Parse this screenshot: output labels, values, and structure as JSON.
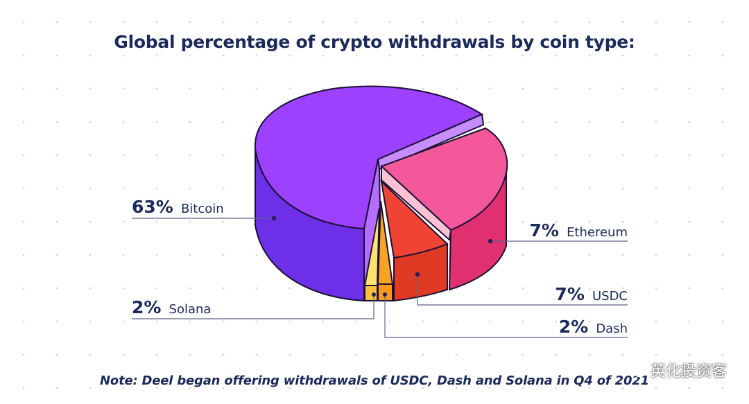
{
  "chart_data": {
    "type": "pie",
    "title": "Global percentage of crypto withdrawals by coin type:",
    "slices": [
      {
        "name": "Bitcoin",
        "value": 63,
        "label": "63%",
        "color": "#9b41ff"
      },
      {
        "name": "Ethereum",
        "value": 7,
        "label": "7%",
        "color": "#f2589a"
      },
      {
        "name": "USDC",
        "value": 7,
        "label": "7%",
        "color": "#ef4434"
      },
      {
        "name": "Dash",
        "value": 2,
        "label": "2%",
        "color": "#f7a325"
      },
      {
        "name": "Solana",
        "value": 2,
        "label": "2%",
        "color": "#fde36e"
      }
    ],
    "note": "Note: Deel began offering withdrawals of USDC, Dash and Solana in Q4 of 2021"
  },
  "watermark": {
    "text": "英化投资客",
    "icon": "wechat-icon"
  }
}
